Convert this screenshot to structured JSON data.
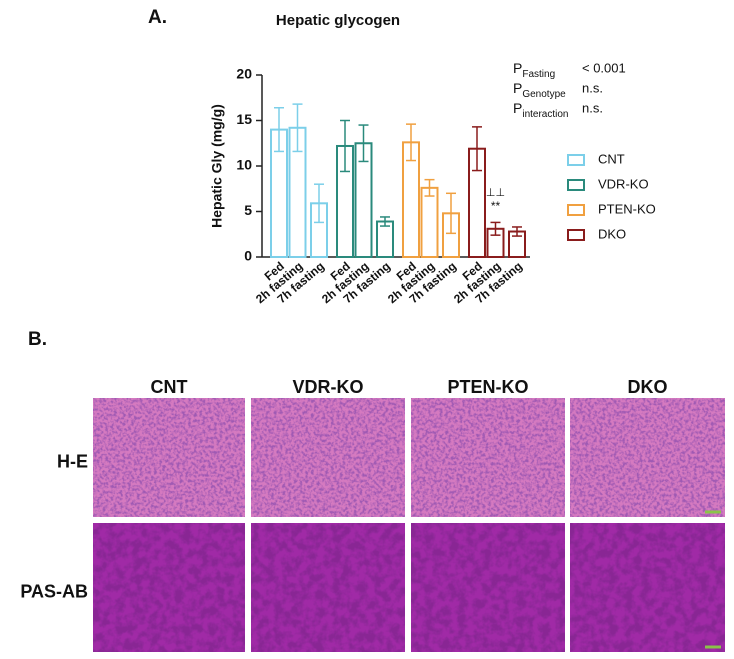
{
  "panel_a_label": "A.",
  "chart_data": {
    "type": "bar",
    "title": "Hepatic glycogen",
    "ylabel": "Hepatic Gly (mg/g)",
    "categories": [
      "Fed",
      "2h fasting",
      "7h fasting",
      "Fed",
      "2h fasting",
      "7h fasting",
      "Fed",
      "2h fasting",
      "7h fasting",
      "Fed",
      "2h fasting",
      "7h fasting"
    ],
    "series": [
      {
        "name": "CNT",
        "color": "#7ccfe9",
        "values": [
          14.0,
          14.2,
          5.9,
          null,
          null,
          null,
          null,
          null,
          null,
          null,
          null,
          null
        ],
        "errors": [
          2.4,
          2.6,
          2.1,
          null,
          null,
          null,
          null,
          null,
          null,
          null,
          null,
          null
        ]
      },
      {
        "name": "VDR-KO",
        "color": "#2a8a7c",
        "values": [
          null,
          null,
          null,
          12.2,
          12.5,
          3.9,
          null,
          null,
          null,
          null,
          null,
          null
        ],
        "errors": [
          null,
          null,
          null,
          2.8,
          2.0,
          0.5,
          null,
          null,
          null,
          null,
          null,
          null
        ]
      },
      {
        "name": "PTEN-KO",
        "color": "#f0a040",
        "values": [
          null,
          null,
          null,
          null,
          null,
          null,
          12.6,
          7.6,
          4.8,
          null,
          null,
          null
        ],
        "errors": [
          null,
          null,
          null,
          null,
          null,
          null,
          2.0,
          0.9,
          2.2,
          null,
          null,
          null
        ]
      },
      {
        "name": "DKO",
        "color": "#8a1c1c",
        "values": [
          null,
          null,
          null,
          null,
          null,
          null,
          null,
          null,
          null,
          11.9,
          3.1,
          2.8
        ],
        "errors": [
          null,
          null,
          null,
          null,
          null,
          null,
          null,
          null,
          null,
          2.4,
          0.7,
          0.5
        ]
      }
    ],
    "ylim": [
      0,
      20
    ],
    "yticks": [
      0,
      5,
      10,
      15,
      20
    ],
    "grid": false,
    "legend": "right",
    "annotations": [
      "⊥⊥",
      "**"
    ],
    "stats": [
      {
        "symbol": "P",
        "subscript": "Fasting",
        "value": "< 0.001"
      },
      {
        "symbol": "P",
        "subscript": "Genotype",
        "value": "n.s."
      },
      {
        "symbol": "P",
        "subscript": "interaction",
        "value": "n.s."
      }
    ]
  },
  "figure_b": {
    "label": "B.",
    "columns": [
      "CNT",
      "VDR-KO",
      "PTEN-KO",
      "DKO"
    ],
    "rows": [
      "H-E",
      "PAS-AB"
    ]
  }
}
